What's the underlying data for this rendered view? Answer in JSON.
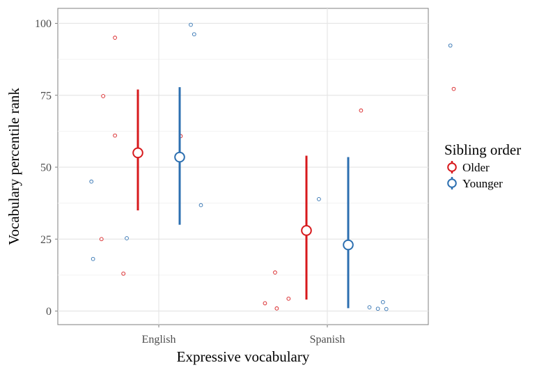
{
  "chart_data": {
    "type": "scatter",
    "xlabel": "Expressive vocabulary",
    "ylabel": "Vocabulary percentile rank",
    "categories": [
      "English",
      "Spanish"
    ],
    "ylim": [
      -5,
      105
    ],
    "yticks": [
      0,
      25,
      50,
      75,
      100
    ],
    "grid": true,
    "legend": {
      "title": "Sibling order",
      "placement": "right"
    },
    "series": [
      {
        "name": "Older",
        "color": "#d7191c",
        "summary": [
          {
            "category": "English",
            "mean": 55,
            "lower": 35,
            "upper": 77
          },
          {
            "category": "Spanish",
            "mean": 28,
            "lower": 4,
            "upper": 54
          }
        ],
        "points": [
          {
            "category": "English",
            "offset": -0.26,
            "y": 95
          },
          {
            "category": "English",
            "offset": -0.33,
            "y": 74.7
          },
          {
            "category": "English",
            "offset": -0.26,
            "y": 61
          },
          {
            "category": "English",
            "offset": -0.34,
            "y": 25
          },
          {
            "category": "English",
            "offset": -0.21,
            "y": 13
          },
          {
            "category": "English",
            "offset": 0.13,
            "y": 60.8
          },
          {
            "category": "Spanish",
            "offset": 1.2,
            "y": 69.7
          },
          {
            "category": "Spanish",
            "offset": 1.75,
            "y": 77.2
          },
          {
            "category": "Spanish",
            "offset": 0.69,
            "y": 13.4
          },
          {
            "category": "Spanish",
            "offset": 0.63,
            "y": 2.7
          },
          {
            "category": "Spanish",
            "offset": 0.7,
            "y": 0.9
          },
          {
            "category": "Spanish",
            "offset": 0.77,
            "y": 4.3
          }
        ]
      },
      {
        "name": "Younger",
        "color": "#2c6fb0",
        "summary": [
          {
            "category": "English",
            "mean": 53.5,
            "lower": 30,
            "upper": 77.8
          },
          {
            "category": "Spanish",
            "mean": 23,
            "lower": 1,
            "upper": 53.5
          }
        ],
        "points": [
          {
            "category": "English",
            "offset": 0.19,
            "y": 99.5
          },
          {
            "category": "English",
            "offset": 0.21,
            "y": 96.2
          },
          {
            "category": "English",
            "offset": -0.4,
            "y": 45
          },
          {
            "category": "English",
            "offset": 0.25,
            "y": 36.8
          },
          {
            "category": "English",
            "offset": -0.19,
            "y": 25.3
          },
          {
            "category": "English",
            "offset": -0.39,
            "y": 18.1
          },
          {
            "category": "Spanish",
            "offset": 1.25,
            "y": 1.3
          },
          {
            "category": "Spanish",
            "offset": 0.95,
            "y": 38.9
          },
          {
            "category": "Spanish",
            "offset": 1.73,
            "y": 92.3
          },
          {
            "category": "Spanish",
            "offset": 1.3,
            "y": 0.8
          },
          {
            "category": "Spanish",
            "offset": 1.33,
            "y": 3.1
          },
          {
            "category": "Spanish",
            "offset": 1.35,
            "y": 0.7
          }
        ]
      }
    ]
  }
}
